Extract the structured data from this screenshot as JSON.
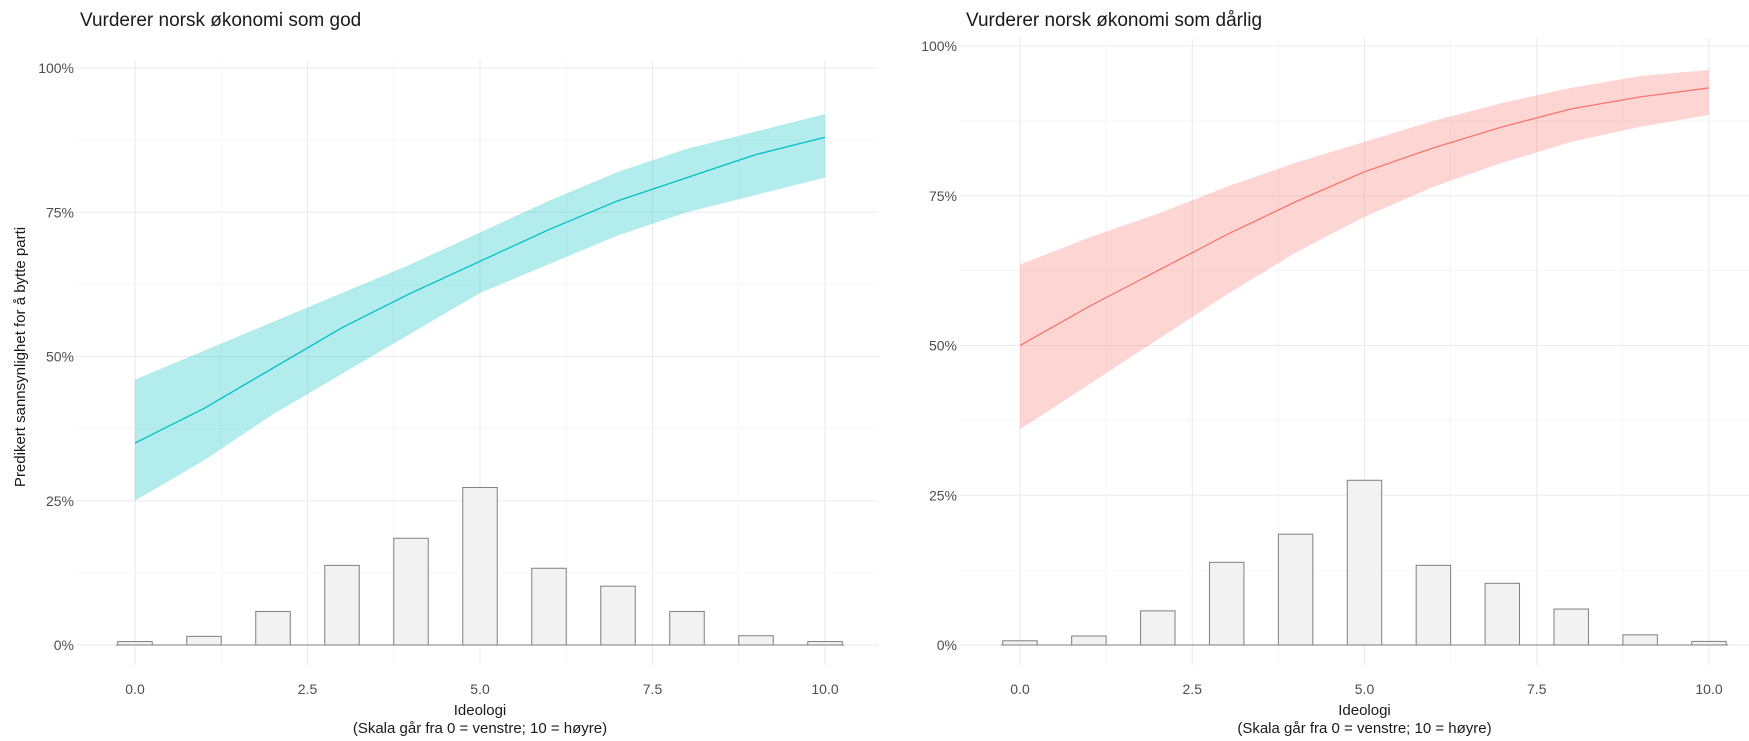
{
  "y_axis_label": "Predikert sannsynlighet for å bytte parti",
  "chart_data": [
    {
      "type": "line",
      "title": "Vurderer norsk økonomi som god",
      "xlabel": "Ideologi",
      "xlabel_sub": "(Skala går fra 0 = venstre; 10 = høyre)",
      "ylabel": "Predikert sannsynlighet for å bytte parti",
      "xlim": [
        0,
        10
      ],
      "ylim": [
        0,
        1
      ],
      "x_ticks": [
        0,
        2.5,
        5,
        7.5,
        10
      ],
      "x_tick_labels": [
        "0.0",
        "2.5",
        "5.0",
        "7.5",
        "10.0"
      ],
      "y_ticks": [
        0,
        0.25,
        0.5,
        0.75,
        1
      ],
      "y_tick_labels": [
        "0%",
        "25%",
        "50%",
        "75%",
        "100%"
      ],
      "grid": true,
      "line_color": "#00BFC4",
      "band_color": "#00BFC4",
      "x": [
        0,
        1,
        2,
        3,
        4,
        5,
        6,
        7,
        8,
        9,
        10
      ],
      "y": [
        0.35,
        0.41,
        0.48,
        0.55,
        0.61,
        0.665,
        0.72,
        0.77,
        0.81,
        0.85,
        0.88
      ],
      "lower": [
        0.25,
        0.32,
        0.4,
        0.47,
        0.54,
        0.61,
        0.66,
        0.71,
        0.75,
        0.78,
        0.81
      ],
      "upper": [
        0.46,
        0.51,
        0.56,
        0.61,
        0.66,
        0.715,
        0.77,
        0.82,
        0.86,
        0.89,
        0.92
      ],
      "histogram": {
        "categories": [
          0,
          1,
          2,
          3,
          4,
          5,
          6,
          7,
          8,
          9,
          10
        ],
        "values": [
          0.006,
          0.015,
          0.058,
          0.138,
          0.185,
          0.273,
          0.133,
          0.102,
          0.058,
          0.016,
          0.006
        ]
      }
    },
    {
      "type": "line",
      "title": "Vurderer norsk økonomi som dårlig",
      "xlabel": "Ideologi",
      "xlabel_sub": "(Skala går fra 0 = venstre; 10 = høyre)",
      "xlim": [
        0,
        10
      ],
      "ylim": [
        0,
        1
      ],
      "x_ticks": [
        0,
        2.5,
        5,
        7.5,
        10
      ],
      "x_tick_labels": [
        "0.0",
        "2.5",
        "5.0",
        "7.5",
        "10.0"
      ],
      "y_ticks": [
        0,
        0.25,
        0.5,
        0.75,
        1
      ],
      "y_tick_labels": [
        "0%",
        "25%",
        "50%",
        "75%",
        "100%"
      ],
      "grid": true,
      "line_color": "#F8766D",
      "band_color": "#F8766D",
      "x": [
        0,
        1,
        2,
        3,
        4,
        5,
        6,
        7,
        8,
        9,
        10
      ],
      "y": [
        0.5,
        0.565,
        0.625,
        0.685,
        0.74,
        0.79,
        0.83,
        0.865,
        0.895,
        0.915,
        0.93
      ],
      "lower": [
        0.36,
        0.435,
        0.51,
        0.585,
        0.655,
        0.715,
        0.765,
        0.805,
        0.84,
        0.865,
        0.885
      ],
      "upper": [
        0.635,
        0.68,
        0.72,
        0.765,
        0.805,
        0.84,
        0.875,
        0.905,
        0.93,
        0.95,
        0.96
      ],
      "histogram": {
        "categories": [
          0,
          1,
          2,
          3,
          4,
          5,
          6,
          7,
          8,
          9,
          10
        ],
        "values": [
          0.007,
          0.015,
          0.057,
          0.138,
          0.185,
          0.275,
          0.133,
          0.103,
          0.06,
          0.017,
          0.006
        ]
      }
    }
  ]
}
